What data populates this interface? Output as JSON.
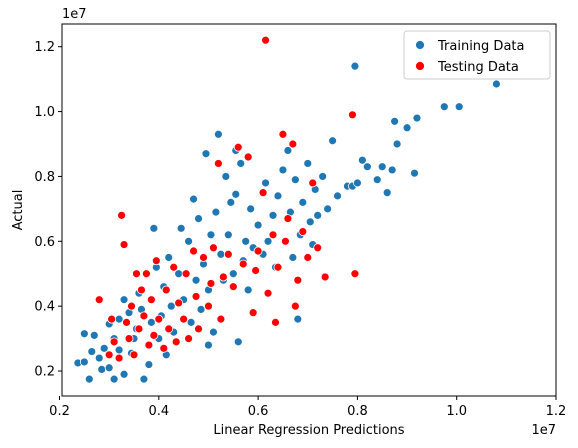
{
  "chart_data": {
    "type": "scatter",
    "xlabel": "Linear Regression Predictions",
    "ylabel": "Actual",
    "x_offset_text": "1e7",
    "y_offset_text": "1e7",
    "xlim": [
      0.205,
      1.2
    ],
    "ylim": [
      0.123,
      1.27
    ],
    "x_ticks": [
      0.2,
      0.4,
      0.6,
      0.8,
      1.0,
      1.2
    ],
    "x_tick_labels": [
      "0.2",
      "0.4",
      "0.6",
      "0.8",
      "1.0",
      "1.2"
    ],
    "y_ticks": [
      0.2,
      0.4,
      0.6,
      0.8,
      1.0,
      1.2
    ],
    "y_tick_labels": [
      "0.2",
      "0.4",
      "0.6",
      "0.8",
      "1.0",
      "1.2"
    ],
    "grid": false,
    "legend_position": "top-right",
    "series": [
      {
        "name": "Training Data",
        "color": "#1f77b4",
        "points": [
          [
            0.237,
            0.225
          ],
          [
            0.25,
            0.228
          ],
          [
            0.265,
            0.26
          ],
          [
            0.26,
            0.175
          ],
          [
            0.28,
            0.24
          ],
          [
            0.25,
            0.315
          ],
          [
            0.27,
            0.31
          ],
          [
            0.29,
            0.27
          ],
          [
            0.3,
            0.345
          ],
          [
            0.285,
            0.205
          ],
          [
            0.3,
            0.21
          ],
          [
            0.31,
            0.3
          ],
          [
            0.31,
            0.175
          ],
          [
            0.32,
            0.36
          ],
          [
            0.33,
            0.19
          ],
          [
            0.32,
            0.265
          ],
          [
            0.34,
            0.38
          ],
          [
            0.33,
            0.42
          ],
          [
            0.345,
            0.255
          ],
          [
            0.35,
            0.3
          ],
          [
            0.355,
            0.33
          ],
          [
            0.36,
            0.44
          ],
          [
            0.37,
            0.175
          ],
          [
            0.365,
            0.39
          ],
          [
            0.38,
            0.22
          ],
          [
            0.385,
            0.35
          ],
          [
            0.39,
            0.64
          ],
          [
            0.395,
            0.52
          ],
          [
            0.4,
            0.3
          ],
          [
            0.405,
            0.37
          ],
          [
            0.41,
            0.46
          ],
          [
            0.415,
            0.25
          ],
          [
            0.42,
            0.55
          ],
          [
            0.425,
            0.4
          ],
          [
            0.43,
            0.32
          ],
          [
            0.44,
            0.5
          ],
          [
            0.445,
            0.64
          ],
          [
            0.45,
            0.42
          ],
          [
            0.46,
            0.6
          ],
          [
            0.465,
            0.35
          ],
          [
            0.47,
            0.73
          ],
          [
            0.475,
            0.48
          ],
          [
            0.48,
            0.67
          ],
          [
            0.485,
            0.39
          ],
          [
            0.49,
            0.53
          ],
          [
            0.495,
            0.87
          ],
          [
            0.5,
            0.45
          ],
          [
            0.505,
            0.62
          ],
          [
            0.51,
            0.32
          ],
          [
            0.515,
            0.69
          ],
          [
            0.52,
            0.93
          ],
          [
            0.525,
            0.56
          ],
          [
            0.53,
            0.48
          ],
          [
            0.535,
            0.8
          ],
          [
            0.54,
            0.62
          ],
          [
            0.545,
            0.72
          ],
          [
            0.55,
            0.5
          ],
          [
            0.555,
            0.88
          ],
          [
            0.56,
            0.29
          ],
          [
            0.565,
            0.84
          ],
          [
            0.57,
            0.54
          ],
          [
            0.575,
            0.6
          ],
          [
            0.58,
            0.45
          ],
          [
            0.585,
            0.7
          ],
          [
            0.59,
            0.58
          ],
          [
            0.6,
            0.65
          ],
          [
            0.61,
            0.56
          ],
          [
            0.615,
            0.78
          ],
          [
            0.62,
            0.6
          ],
          [
            0.63,
            0.68
          ],
          [
            0.635,
            0.52
          ],
          [
            0.64,
            0.74
          ],
          [
            0.65,
            0.82
          ],
          [
            0.655,
            0.6
          ],
          [
            0.66,
            0.88
          ],
          [
            0.665,
            0.69
          ],
          [
            0.67,
            0.55
          ],
          [
            0.675,
            0.79
          ],
          [
            0.68,
            0.36
          ],
          [
            0.685,
            0.62
          ],
          [
            0.69,
            0.72
          ],
          [
            0.7,
            0.84
          ],
          [
            0.705,
            0.66
          ],
          [
            0.71,
            0.59
          ],
          [
            0.715,
            0.76
          ],
          [
            0.72,
            0.68
          ],
          [
            0.73,
            0.8
          ],
          [
            0.74,
            0.7
          ],
          [
            0.75,
            0.91
          ],
          [
            0.76,
            0.74
          ],
          [
            0.78,
            0.77
          ],
          [
            0.79,
            0.77
          ],
          [
            0.8,
            0.78
          ],
          [
            0.81,
            0.85
          ],
          [
            0.82,
            0.83
          ],
          [
            0.84,
            0.79
          ],
          [
            0.85,
            0.83
          ],
          [
            0.86,
            0.75
          ],
          [
            0.87,
            0.82
          ],
          [
            0.875,
            0.97
          ],
          [
            0.88,
            0.9
          ],
          [
            0.9,
            0.95
          ],
          [
            0.915,
            0.81
          ],
          [
            0.92,
            0.98
          ],
          [
            0.975,
            1.015
          ],
          [
            1.005,
            1.015
          ],
          [
            1.08,
            1.085
          ],
          [
            0.795,
            1.14
          ],
          [
            0.555,
            0.745
          ],
          [
            0.5,
            0.28
          ]
        ]
      },
      {
        "name": "Testing Data",
        "color": "#ff0000",
        "points": [
          [
            0.28,
            0.42
          ],
          [
            0.3,
            0.25
          ],
          [
            0.305,
            0.36
          ],
          [
            0.31,
            0.29
          ],
          [
            0.32,
            0.24
          ],
          [
            0.325,
            0.68
          ],
          [
            0.33,
            0.59
          ],
          [
            0.335,
            0.35
          ],
          [
            0.34,
            0.3
          ],
          [
            0.345,
            0.4
          ],
          [
            0.35,
            0.25
          ],
          [
            0.355,
            0.5
          ],
          [
            0.36,
            0.33
          ],
          [
            0.365,
            0.45
          ],
          [
            0.37,
            0.37
          ],
          [
            0.375,
            0.5
          ],
          [
            0.38,
            0.28
          ],
          [
            0.385,
            0.42
          ],
          [
            0.39,
            0.31
          ],
          [
            0.395,
            0.54
          ],
          [
            0.4,
            0.36
          ],
          [
            0.41,
            0.27
          ],
          [
            0.415,
            0.45
          ],
          [
            0.42,
            0.33
          ],
          [
            0.43,
            0.52
          ],
          [
            0.435,
            0.29
          ],
          [
            0.44,
            0.41
          ],
          [
            0.45,
            0.36
          ],
          [
            0.455,
            0.5
          ],
          [
            0.46,
            0.3
          ],
          [
            0.47,
            0.57
          ],
          [
            0.475,
            0.43
          ],
          [
            0.48,
            0.33
          ],
          [
            0.49,
            0.55
          ],
          [
            0.5,
            0.4
          ],
          [
            0.505,
            0.47
          ],
          [
            0.51,
            0.58
          ],
          [
            0.52,
            0.84
          ],
          [
            0.525,
            0.36
          ],
          [
            0.53,
            0.49
          ],
          [
            0.54,
            0.56
          ],
          [
            0.55,
            0.46
          ],
          [
            0.56,
            0.89
          ],
          [
            0.57,
            0.53
          ],
          [
            0.58,
            0.86
          ],
          [
            0.59,
            0.38
          ],
          [
            0.595,
            0.51
          ],
          [
            0.6,
            0.57
          ],
          [
            0.61,
            0.75
          ],
          [
            0.615,
            1.22
          ],
          [
            0.62,
            0.44
          ],
          [
            0.63,
            0.62
          ],
          [
            0.635,
            0.35
          ],
          [
            0.64,
            0.52
          ],
          [
            0.65,
            0.93
          ],
          [
            0.655,
            0.6
          ],
          [
            0.66,
            0.67
          ],
          [
            0.67,
            0.9
          ],
          [
            0.675,
            0.4
          ],
          [
            0.68,
            0.48
          ],
          [
            0.69,
            0.63
          ],
          [
            0.7,
            0.55
          ],
          [
            0.71,
            0.78
          ],
          [
            0.72,
            0.58
          ],
          [
            0.735,
            0.49
          ],
          [
            0.79,
            0.99
          ],
          [
            0.795,
            0.5
          ]
        ]
      }
    ]
  }
}
